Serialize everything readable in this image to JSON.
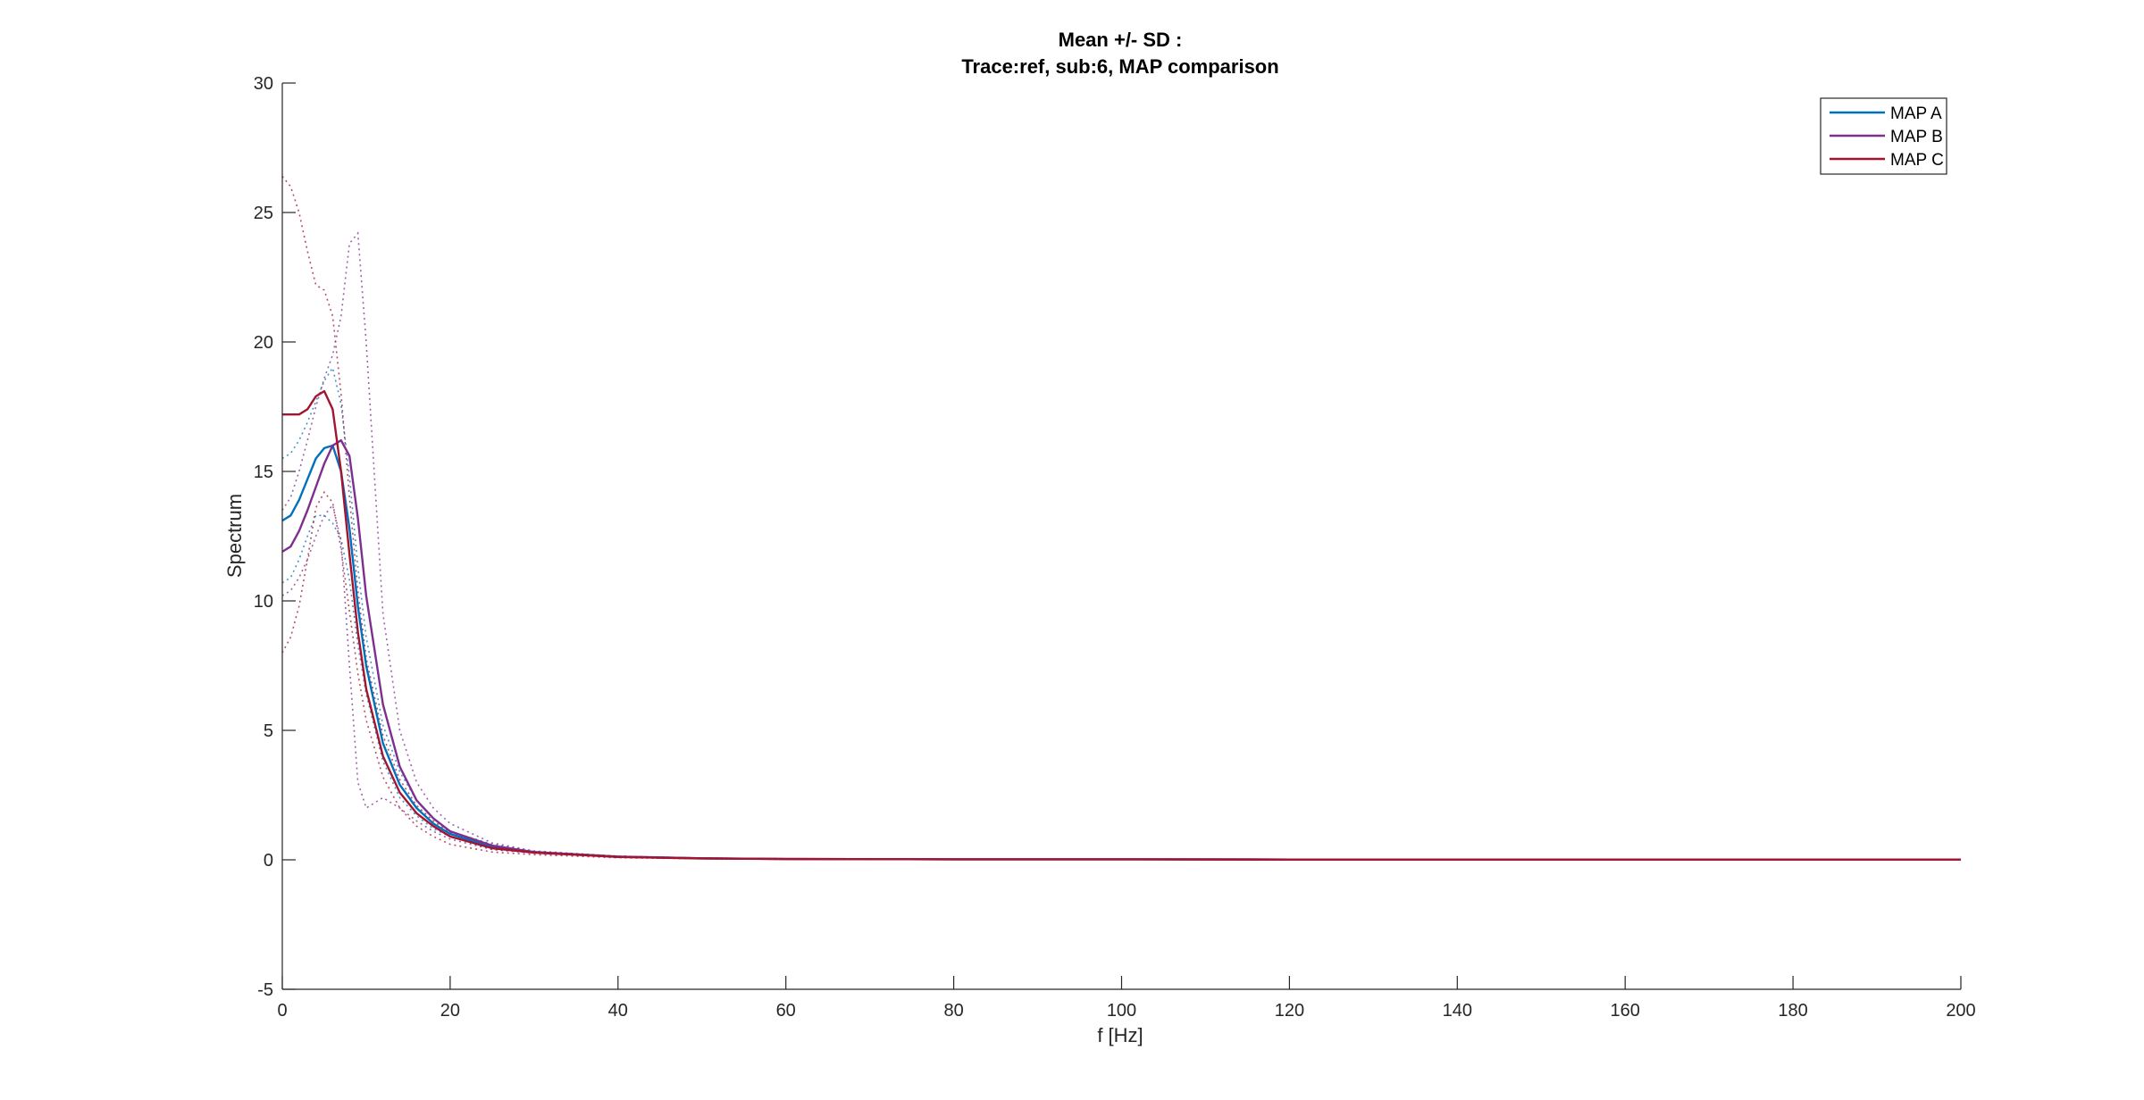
{
  "chart_data": {
    "type": "line",
    "title": [
      "Mean +/- SD :",
      "Trace:ref, sub:6, MAP comparison"
    ],
    "xlabel": "f [Hz]",
    "ylabel": "Spectrum",
    "xlim": [
      0,
      200
    ],
    "ylim": [
      -5,
      30
    ],
    "x_ticks": [
      0,
      20,
      40,
      60,
      80,
      100,
      120,
      140,
      160,
      180,
      200
    ],
    "y_ticks": [
      -5,
      0,
      5,
      10,
      15,
      20,
      25,
      30
    ],
    "grid": false,
    "legend_position": "top-right",
    "x": [
      0,
      1,
      2,
      3,
      4,
      5,
      6,
      7,
      8,
      9,
      10,
      12,
      14,
      16,
      18,
      20,
      25,
      30,
      40,
      50,
      60,
      80,
      100,
      120,
      140,
      160,
      180,
      200
    ],
    "series": [
      {
        "name": "MAP A",
        "color": "#0072BD",
        "mean": [
          13.1,
          13.3,
          13.9,
          14.7,
          15.5,
          15.9,
          16.0,
          15.0,
          12.8,
          9.8,
          7.5,
          4.5,
          2.9,
          2.0,
          1.4,
          1.0,
          0.5,
          0.3,
          0.12,
          0.06,
          0.03,
          0.02,
          0.02,
          0.01,
          0.01,
          0.01,
          0.01,
          0.01
        ],
        "upper": [
          15.5,
          15.7,
          16.2,
          16.9,
          17.7,
          18.5,
          19.0,
          17.6,
          14.8,
          11.3,
          8.6,
          5.2,
          3.4,
          2.3,
          1.6,
          1.1,
          0.6,
          0.33,
          0.14,
          0.07,
          0.04,
          0.02,
          0.02,
          0.01,
          0.01,
          0.01,
          0.01,
          0.01
        ],
        "lower": [
          10.7,
          10.9,
          11.6,
          12.5,
          13.3,
          13.3,
          13.0,
          12.4,
          10.8,
          8.3,
          6.4,
          3.8,
          2.4,
          1.7,
          1.2,
          0.9,
          0.4,
          0.27,
          0.1,
          0.05,
          0.02,
          0.02,
          0.02,
          0.01,
          0.01,
          0.01,
          0.01,
          0.01
        ]
      },
      {
        "name": "MAP B",
        "color": "#7E2F8E",
        "mean": [
          11.9,
          12.1,
          12.7,
          13.5,
          14.4,
          15.3,
          16.0,
          16.2,
          15.6,
          13.2,
          10.2,
          6.0,
          3.6,
          2.3,
          1.6,
          1.1,
          0.55,
          0.3,
          0.12,
          0.06,
          0.03,
          0.02,
          0.02,
          0.01,
          0.01,
          0.01,
          0.01,
          0.01
        ],
        "upper": [
          13.5,
          14.0,
          15.0,
          16.2,
          17.5,
          18.6,
          19.5,
          21.0,
          23.8,
          24.2,
          20.0,
          9.5,
          5.0,
          3.0,
          2.0,
          1.4,
          0.65,
          0.34,
          0.14,
          0.07,
          0.04,
          0.02,
          0.02,
          0.01,
          0.01,
          0.01,
          0.01,
          0.01
        ],
        "lower": [
          10.2,
          10.4,
          10.9,
          11.6,
          12.5,
          13.3,
          13.7,
          12.3,
          7.5,
          3.0,
          2.0,
          2.4,
          2.0,
          1.5,
          1.1,
          0.8,
          0.4,
          0.26,
          0.1,
          0.05,
          0.02,
          0.02,
          0.02,
          0.01,
          0.01,
          0.01,
          0.01,
          0.01
        ]
      },
      {
        "name": "MAP C",
        "color": "#A2142F",
        "mean": [
          17.2,
          17.2,
          17.2,
          17.4,
          17.9,
          18.1,
          17.4,
          15.0,
          11.8,
          8.8,
          6.6,
          4.0,
          2.6,
          1.8,
          1.3,
          0.9,
          0.45,
          0.28,
          0.11,
          0.05,
          0.03,
          0.02,
          0.02,
          0.01,
          0.01,
          0.01,
          0.01,
          0.01
        ],
        "upper": [
          26.4,
          26.0,
          25.0,
          23.5,
          22.2,
          22.0,
          21.0,
          18.0,
          14.0,
          10.4,
          7.8,
          4.8,
          3.1,
          2.1,
          1.5,
          1.05,
          0.5,
          0.31,
          0.13,
          0.06,
          0.04,
          0.02,
          0.02,
          0.01,
          0.01,
          0.01,
          0.01,
          0.01
        ],
        "lower": [
          8.0,
          8.6,
          9.8,
          11.6,
          13.6,
          14.2,
          13.8,
          12.0,
          9.6,
          7.2,
          5.4,
          3.2,
          2.0,
          1.3,
          0.9,
          0.6,
          0.3,
          0.2,
          0.08,
          0.04,
          0.02,
          0.02,
          0.02,
          0.01,
          0.01,
          0.01,
          0.01,
          0.01
        ]
      }
    ]
  }
}
